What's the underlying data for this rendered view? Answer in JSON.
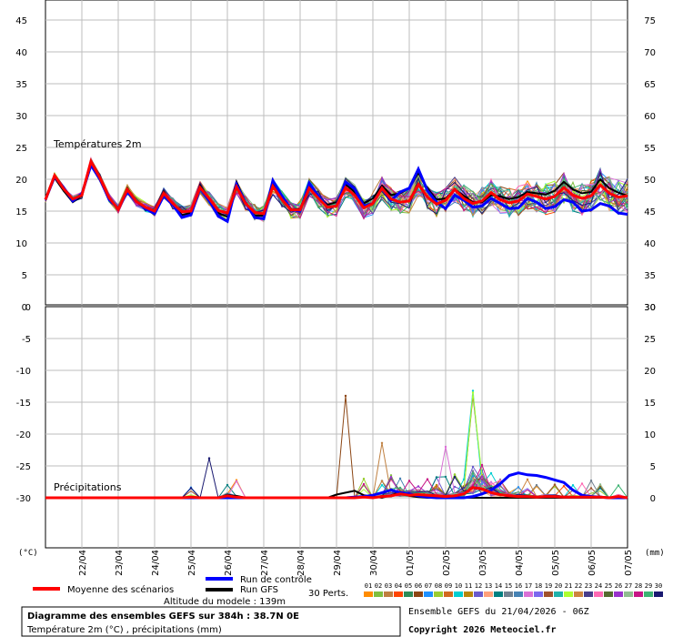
{
  "footer": {
    "altitude": "Altitude du modele : 139m",
    "box_title": "Diagramme des ensembles GEFS sur 384h : 38.7N 0E",
    "box_subtitle": "Température 2m (°C) , précipitations (mm)",
    "run_info": "Ensemble GEFS du 21/04/2026 - 06Z",
    "copyright": "Copyright 2026 Meteociel.fr"
  },
  "legend": {
    "mean_label": "Moyenne des scénarios",
    "control_label": "Run de contrôle",
    "gfs_label": "Run GFS",
    "perts_label": "30 Perts.",
    "mean_color": "#ff0000",
    "control_color": "#0000ff",
    "gfs_color": "#000000",
    "pert_numbers": [
      "01",
      "02",
      "03",
      "04",
      "05",
      "06",
      "07",
      "08",
      "09",
      "10",
      "11",
      "12",
      "13",
      "14",
      "15",
      "16",
      "17",
      "18",
      "19",
      "20",
      "21",
      "22",
      "23",
      "24",
      "25",
      "26",
      "27",
      "28",
      "29",
      "30"
    ],
    "pert_colors": [
      "#ff8c00",
      "#7fbf3f",
      "#bf7f3f",
      "#ff4500",
      "#2e8b57",
      "#8b4513",
      "#1e90ff",
      "#9acd32",
      "#d2691e",
      "#00ced1",
      "#b8860b",
      "#6a5acd",
      "#ffa07a",
      "#008080",
      "#708090",
      "#4682b4",
      "#da70d6",
      "#7b68ee",
      "#a0522d",
      "#20b2aa",
      "#adff2f",
      "#cd853f",
      "#483d8b",
      "#ff69b4",
      "#556b2f",
      "#9932cc",
      "#8fbc8f",
      "#c71585",
      "#3cb371",
      "#191970"
    ]
  },
  "chart_data": [
    {
      "type": "line",
      "title": "Températures 2m",
      "x_labels": [
        "22/04",
        "23/04",
        "24/04",
        "25/04",
        "26/04",
        "27/04",
        "28/04",
        "29/04",
        "30/04",
        "01/05",
        "02/05",
        "03/05",
        "04/05",
        "05/05",
        "06/05",
        "07/05"
      ],
      "y_left_ticks": [
        "45",
        "40",
        "35",
        "30",
        "25",
        "20",
        "15",
        "10",
        "5",
        "0"
      ],
      "y_right_ticks": [
        "75",
        "70",
        "65",
        "60",
        "55",
        "50",
        "45",
        "40",
        "35",
        "30"
      ],
      "step_hours": 12,
      "series": [
        {
          "role": "mean",
          "values": [
            16.8,
            20.6,
            18.5,
            16.9,
            17.5,
            22.8,
            20.2,
            17.1,
            15.3,
            18.4,
            16.5,
            15.6,
            15.0,
            17.8,
            16.2,
            14.9,
            15.0,
            18.7,
            17.0,
            15.1,
            14.7,
            18.8,
            16.2,
            14.8,
            14.6,
            18.9,
            16.8,
            15.2,
            15.2,
            18.6,
            17.0,
            15.6,
            15.8,
            18.7,
            17.5,
            15.5,
            16.2,
            18.6,
            16.9,
            16.4,
            16.6,
            19.2,
            17.2,
            16.1,
            16.7,
            18.4,
            17.0,
            16.2,
            16.6,
            17.9,
            16.8,
            16.3,
            16.6,
            17.7,
            17.3,
            16.9,
            17.3,
            18.7,
            17.5,
            17.0,
            17.4,
            19.1,
            17.8,
            17.2,
            17.4
          ]
        },
        {
          "role": "control",
          "values": [
            16.8,
            20.4,
            18.7,
            16.6,
            17.7,
            22.2,
            20.0,
            16.8,
            15.4,
            18.0,
            16.5,
            15.4,
            14.6,
            17.4,
            16.0,
            14.0,
            14.4,
            18.6,
            16.7,
            14.2,
            13.4,
            19.2,
            16.3,
            14.0,
            13.8,
            19.8,
            17.4,
            15.2,
            15.0,
            19.4,
            17.4,
            15.6,
            15.8,
            19.6,
            18.5,
            15.8,
            16.2,
            18.6,
            16.7,
            18.0,
            18.6,
            21.6,
            18.2,
            16.4,
            15.4,
            17.5,
            16.7,
            15.6,
            15.8,
            17.0,
            16.2,
            15.4,
            15.5,
            17.0,
            16.4,
            15.4,
            15.7,
            16.8,
            16.4,
            15.0,
            15.2,
            16.2,
            15.8,
            14.7,
            14.5
          ]
        },
        {
          "role": "gfs",
          "values": [
            16.8,
            20.2,
            18.2,
            16.4,
            17.4,
            22.2,
            19.8,
            16.9,
            15.2,
            18.6,
            16.5,
            15.4,
            14.8,
            18.0,
            16.1,
            14.4,
            14.7,
            19.0,
            16.8,
            14.7,
            14.1,
            19.6,
            16.4,
            14.3,
            14.3,
            19.5,
            16.9,
            15.2,
            15.4,
            19.0,
            17.4,
            16.0,
            16.4,
            19.2,
            18.0,
            16.2,
            17.0,
            19.0,
            17.5,
            17.8,
            18.6,
            21.0,
            18.6,
            16.8,
            17.0,
            18.4,
            17.4,
            16.4,
            16.4,
            17.5,
            17.3,
            16.9,
            17.2,
            18.0,
            17.8,
            17.6,
            18.2,
            19.6,
            18.4,
            17.8,
            18.0,
            20.0,
            18.6,
            17.9,
            17.4
          ]
        }
      ]
    },
    {
      "type": "line",
      "title": "Précipitations",
      "y_left_ticks": [
        "0",
        "-5",
        "-10",
        "-15",
        "-20",
        "-25",
        "-30"
      ],
      "y_right_ticks": [
        "30",
        "25",
        "20",
        "15",
        "10",
        "5",
        "0"
      ],
      "y_units_left": "(°C)",
      "y_units_right": "(mm)",
      "x_labels": [
        "22/04",
        "23/04",
        "24/04",
        "25/04",
        "26/04",
        "27/04",
        "28/04",
        "29/04",
        "30/04",
        "01/05",
        "02/05",
        "03/05",
        "04/05",
        "05/05",
        "06/05",
        "07/05"
      ],
      "series": [
        {
          "role": "mean",
          "values": [
            0,
            0,
            0,
            0,
            0,
            0,
            0,
            0,
            0,
            0,
            0,
            0,
            0,
            0,
            0,
            0,
            0.1,
            0,
            0,
            0,
            0.3,
            0.1,
            0,
            0,
            0,
            0,
            0,
            0,
            0,
            0,
            0,
            0,
            0,
            0,
            0,
            0.1,
            0,
            0.2,
            0.3,
            0.6,
            0.4,
            0.5,
            0.4,
            0.3,
            0.2,
            0.3,
            0.6,
            1.6,
            1.4,
            0.8,
            0.5,
            0.3,
            0.2,
            0.2,
            0.1,
            0.2,
            0.2,
            0.1,
            0.1,
            0.1,
            0.1,
            0.1,
            0,
            0.2,
            0
          ]
        },
        {
          "role": "control",
          "values": [
            0,
            0,
            0,
            0,
            0,
            0,
            0,
            0,
            0,
            0,
            0,
            0,
            0,
            0,
            0,
            0,
            0,
            0,
            0,
            0,
            0,
            0,
            0,
            0,
            0,
            0,
            0,
            0,
            0,
            0,
            0,
            0,
            0,
            0,
            0.1,
            0.2,
            0.4,
            0.8,
            1.2,
            0.8,
            0.6,
            0.3,
            0.1,
            0,
            0,
            0,
            0,
            0.2,
            0.6,
            1.2,
            2.2,
            3.5,
            3.9,
            3.6,
            3.5,
            3.2,
            2.8,
            2.4,
            1.2,
            0.4,
            0.2,
            0.1,
            0,
            0,
            0
          ]
        },
        {
          "role": "gfs",
          "values": [
            0,
            0,
            0,
            0,
            0,
            0,
            0,
            0,
            0,
            0,
            0,
            0,
            0,
            0,
            0,
            0,
            0,
            0,
            0,
            0,
            0.4,
            0.3,
            0,
            0,
            0,
            0,
            0,
            0,
            0,
            0,
            0,
            0,
            0.5,
            0.8,
            1.1,
            0.4,
            0.2,
            0,
            0.4,
            0.9,
            0.3,
            0.1,
            0,
            0,
            0,
            0,
            0,
            0,
            0,
            0,
            0,
            0,
            0,
            0,
            0,
            0,
            0,
            0,
            0,
            0,
            0,
            0,
            0,
            0,
            0
          ]
        }
      ],
      "pert_peaks": [
        {
          "pert": 6,
          "step": 47,
          "value": 16.0
        },
        {
          "pert": 10,
          "step": 47,
          "value": 16.8
        },
        {
          "pert": 21,
          "step": 47,
          "value": 16.5
        },
        {
          "pert": 6,
          "step": 33,
          "value": 16.0
        },
        {
          "pert": 3,
          "step": 37,
          "value": 8.6
        },
        {
          "pert": 30,
          "step": 18,
          "value": 6.2
        },
        {
          "pert": 17,
          "step": 44,
          "value": 8.0
        }
      ]
    }
  ]
}
